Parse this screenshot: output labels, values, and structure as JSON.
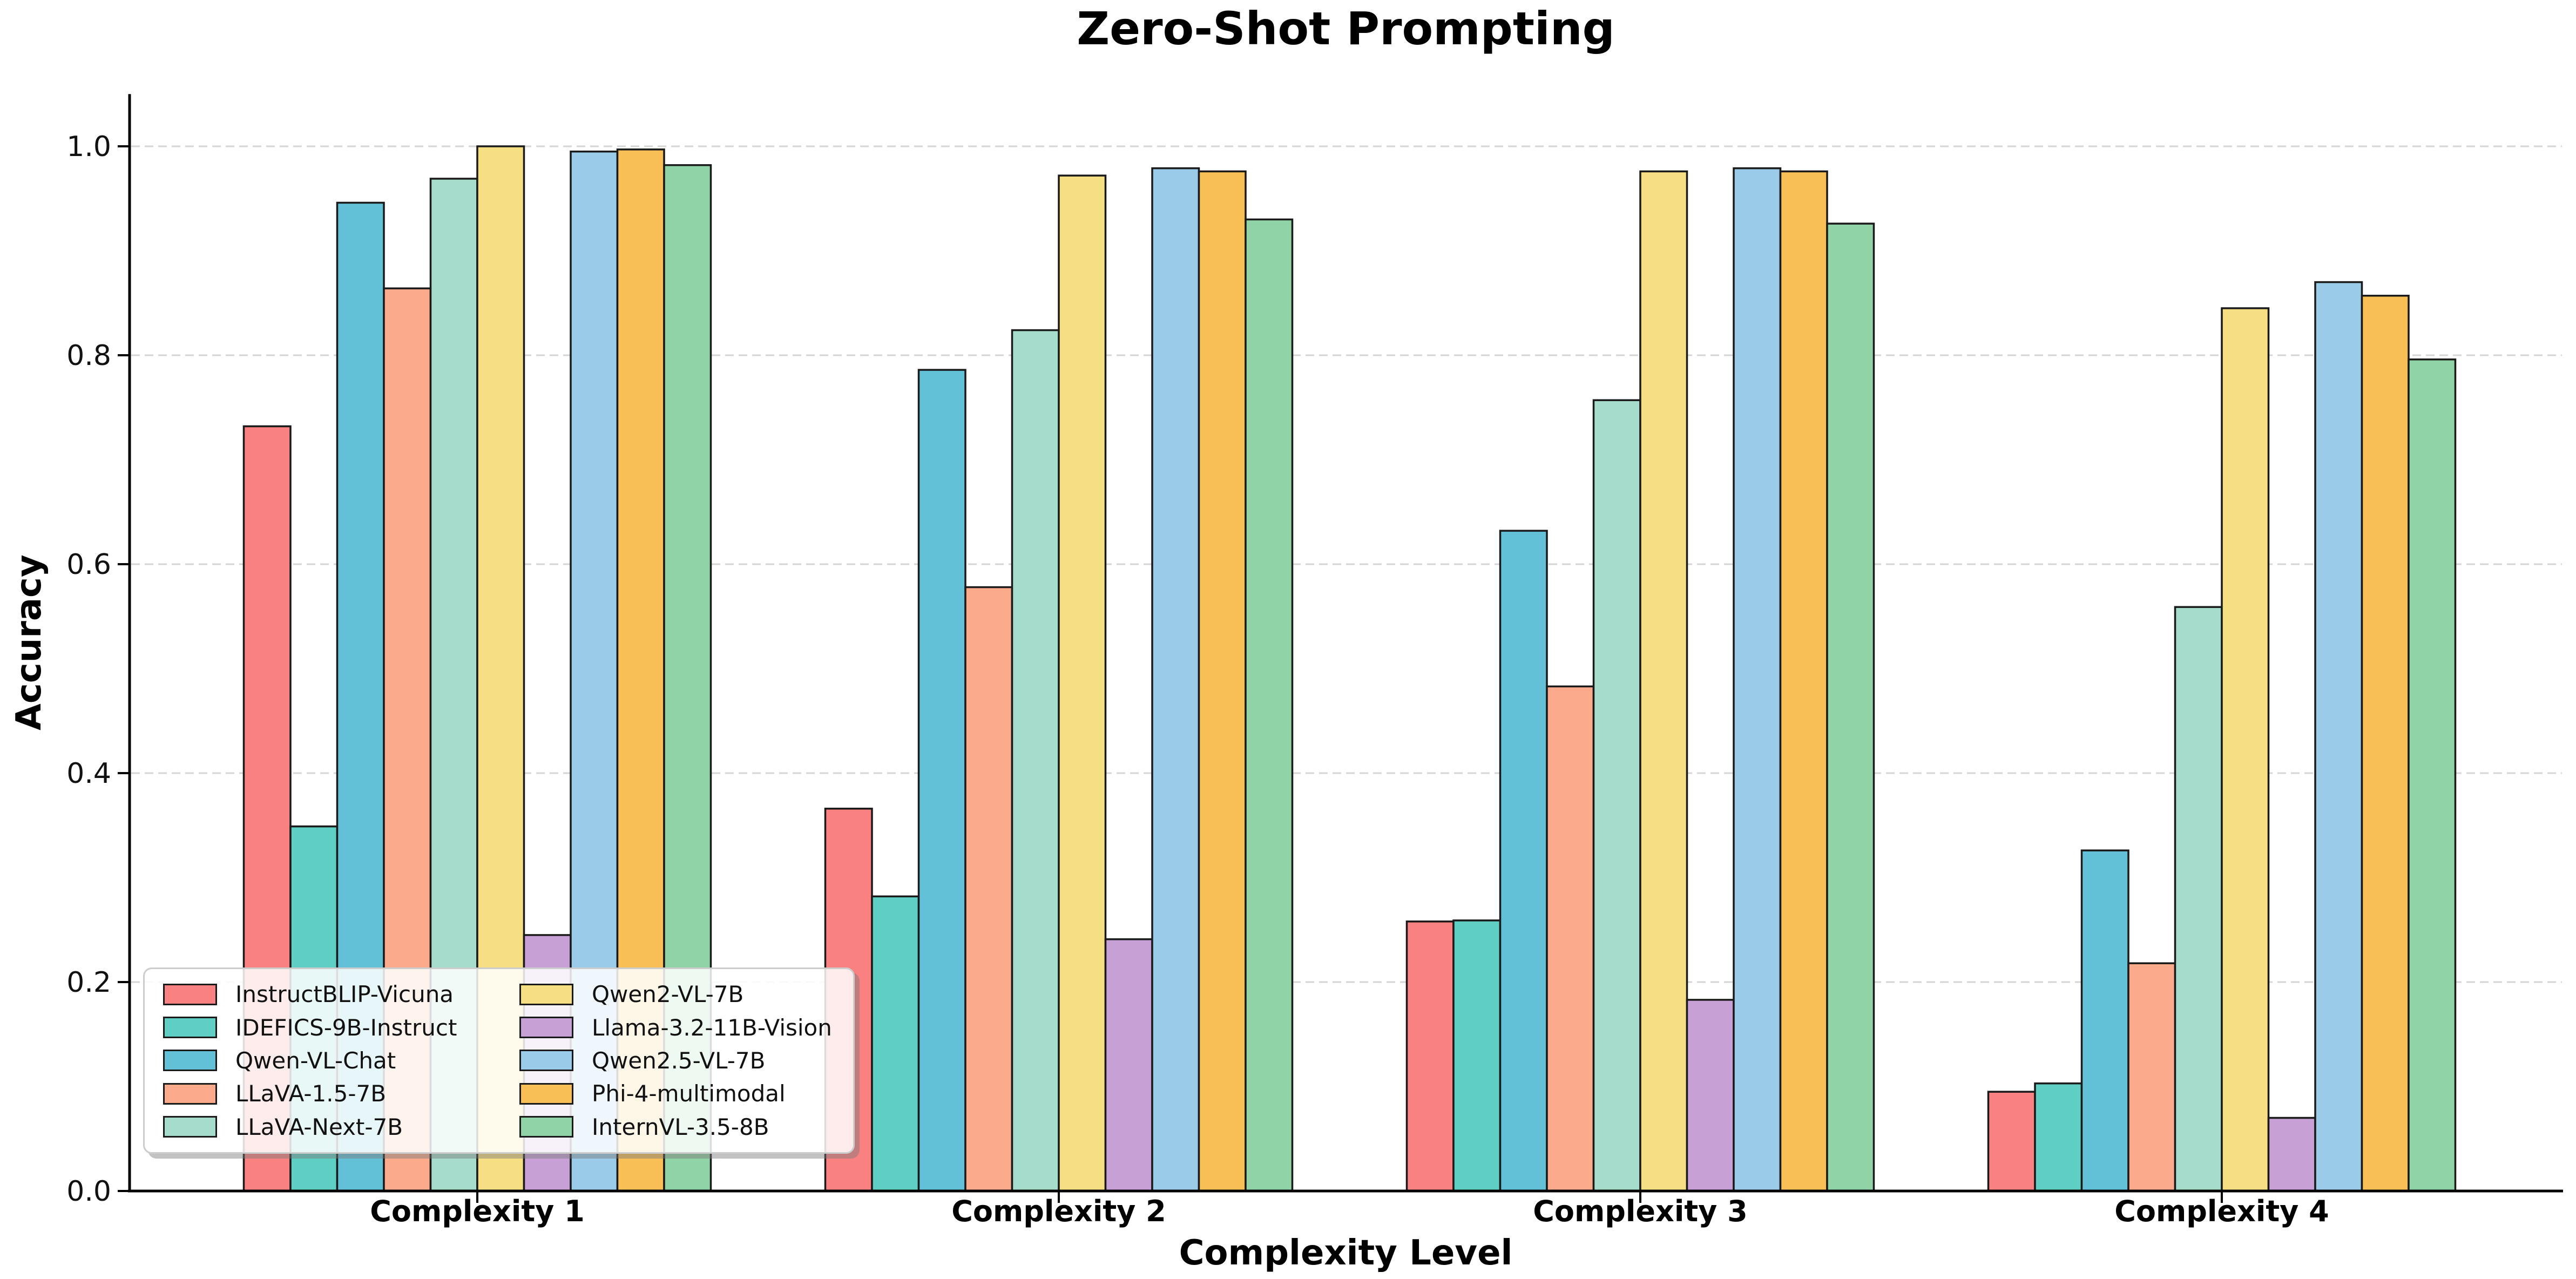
{
  "chart_data": {
    "type": "bar",
    "title": "Zero-Shot Prompting",
    "xlabel": "Complexity Level",
    "ylabel": "Accuracy",
    "categories": [
      "Complexity 1",
      "Complexity 2",
      "Complexity 3",
      "Complexity 4"
    ],
    "ylim": [
      0,
      1.05
    ],
    "grid": "horizontal-dashed",
    "legend": {
      "position": "lower-left",
      "columns": 2
    },
    "yticks": [
      {
        "label": "0.0",
        "value": 0.0
      },
      {
        "label": "0.2",
        "value": 0.2
      },
      {
        "label": "0.4",
        "value": 0.4
      },
      {
        "label": "0.6",
        "value": 0.6
      },
      {
        "label": "0.8",
        "value": 0.8
      },
      {
        "label": "1.0",
        "value": 1.0
      }
    ],
    "series": [
      {
        "name": "InstructBLIP-Vicuna",
        "color": "#F98181",
        "values": [
          0.732,
          0.366,
          0.258,
          0.095
        ]
      },
      {
        "name": "IDEFICS-9B-Instruct",
        "color": "#5FCEC3",
        "values": [
          0.349,
          0.282,
          0.259,
          0.103
        ]
      },
      {
        "name": "Qwen-VL-Chat",
        "color": "#62C1D7",
        "values": [
          0.946,
          0.786,
          0.632,
          0.326
        ]
      },
      {
        "name": "LLaVA-1.5-7B",
        "color": "#FBAB8C",
        "values": [
          0.864,
          0.578,
          0.483,
          0.218
        ]
      },
      {
        "name": "LLaVA-Next-7B",
        "color": "#A6DCCB",
        "values": [
          0.969,
          0.824,
          0.757,
          0.559
        ]
      },
      {
        "name": "Qwen2-VL-7B",
        "color": "#F6DF82",
        "values": [
          1.0,
          0.972,
          0.976,
          0.845
        ]
      },
      {
        "name": "Llama-3.2-11B-Vision",
        "color": "#C7A0D6",
        "values": [
          0.245,
          0.241,
          0.183,
          0.07
        ]
      },
      {
        "name": "Qwen2.5-VL-7B",
        "color": "#9ACBE8",
        "values": [
          0.995,
          0.979,
          0.979,
          0.87
        ]
      },
      {
        "name": "Phi-4-multimodal",
        "color": "#F8BF57",
        "values": [
          0.997,
          0.976,
          0.976,
          0.857
        ]
      },
      {
        "name": "InternVL-3.5-8B",
        "color": "#90D3A6",
        "values": [
          0.982,
          0.93,
          0.926,
          0.796
        ]
      }
    ]
  },
  "style_colors": {
    "bar_edge": "#1a1a1a",
    "gridline": "#d5d5d5",
    "spine": "#000000",
    "legend_border": "#cccccc"
  }
}
